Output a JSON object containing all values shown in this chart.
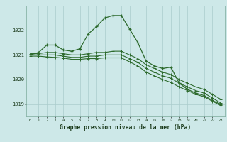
{
  "title": "Graphe pression niveau de la mer (hPa)",
  "bg_color": "#cde8e8",
  "grid_color": "#aacccc",
  "line_color": "#2d6a2d",
  "x_ticks": [
    0,
    1,
    2,
    3,
    4,
    5,
    6,
    7,
    8,
    9,
    10,
    11,
    12,
    13,
    14,
    15,
    16,
    17,
    18,
    19,
    20,
    21,
    22,
    23
  ],
  "ylim": [
    1018.5,
    1023.0
  ],
  "yticks": [
    1019,
    1020,
    1021,
    1022
  ],
  "line1_y": [
    1021.0,
    1021.1,
    1021.4,
    1021.4,
    1021.2,
    1021.15,
    1021.25,
    1021.85,
    1022.15,
    1022.5,
    1022.6,
    1022.6,
    1022.05,
    1021.5,
    1020.75,
    1020.55,
    1020.45,
    1020.5,
    1019.85,
    1019.6,
    1019.45,
    1019.35,
    1019.15,
    1019.0
  ],
  "line2_y": [
    1021.05,
    1021.05,
    1021.1,
    1021.1,
    1021.05,
    1021.0,
    1021.0,
    1021.05,
    1021.1,
    1021.1,
    1021.15,
    1021.15,
    1021.0,
    1020.85,
    1020.6,
    1020.45,
    1020.3,
    1020.2,
    1020.0,
    1019.85,
    1019.7,
    1019.6,
    1019.4,
    1019.2
  ],
  "line3_y": [
    1021.0,
    1021.0,
    1021.0,
    1021.0,
    1020.95,
    1020.9,
    1020.9,
    1020.95,
    1020.95,
    1021.0,
    1021.0,
    1021.0,
    1020.85,
    1020.7,
    1020.45,
    1020.3,
    1020.15,
    1020.05,
    1019.85,
    1019.7,
    1019.55,
    1019.45,
    1019.25,
    1019.05
  ],
  "line4_y": [
    1020.95,
    1020.95,
    1020.92,
    1020.9,
    1020.87,
    1020.82,
    1020.82,
    1020.85,
    1020.85,
    1020.88,
    1020.88,
    1020.88,
    1020.72,
    1020.55,
    1020.3,
    1020.15,
    1020.0,
    1019.88,
    1019.7,
    1019.55,
    1019.4,
    1019.3,
    1019.12,
    1018.95
  ]
}
